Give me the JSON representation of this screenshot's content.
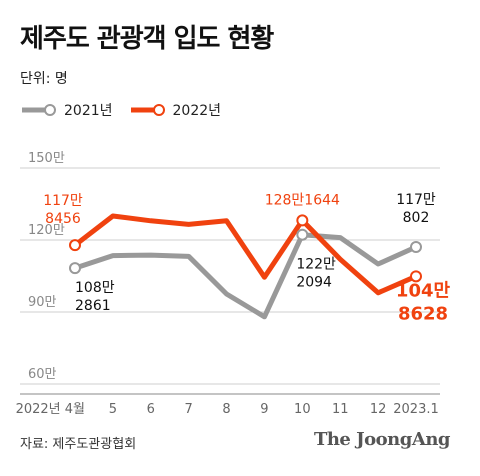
{
  "header": {
    "title": "제주도 관광객 입도 현황",
    "unit": "단위: 명"
  },
  "footer": {
    "source": "자료: 제주도관광협회",
    "brand": "The JoongAng"
  },
  "colors": {
    "series_2021": "#999999",
    "series_2022": "#f0420f",
    "grid": "#cfcfcf",
    "axis_label": "#888888"
  },
  "chart_data": {
    "type": "line",
    "categories": [
      "2022년 4월",
      "5",
      "6",
      "7",
      "8",
      "9",
      "10",
      "11",
      "12",
      "2023.1"
    ],
    "ylim": [
      60,
      150
    ],
    "yticks": [
      {
        "value": 150,
        "label": "150만"
      },
      {
        "value": 120,
        "label": "120만"
      },
      {
        "value": 90,
        "label": "90만"
      },
      {
        "value": 60,
        "label": "60만"
      }
    ],
    "grid": true,
    "legend_position": "top-left",
    "series": [
      {
        "name": "2021년",
        "values": [
          108.2861,
          113.5,
          113.7,
          113.2,
          97.5,
          88.0,
          122.2094,
          121.0,
          110.0,
          117.0802
        ]
      },
      {
        "name": "2022년",
        "values": [
          117.8456,
          130.0,
          128.0,
          126.5,
          128.0,
          104.5,
          128.1644,
          112.0,
          98.0,
          104.8628
        ]
      }
    ],
    "annotations": [
      {
        "series": "2022년",
        "index": 0,
        "lines": [
          "117만",
          "8456"
        ]
      },
      {
        "series": "2021년",
        "index": 0,
        "lines": [
          "108만",
          "2861"
        ]
      },
      {
        "series": "2022년",
        "index": 6,
        "lines": [
          "128만1644"
        ]
      },
      {
        "series": "2021년",
        "index": 6,
        "lines": [
          "122만",
          "2094"
        ]
      },
      {
        "series": "2021년",
        "index": 9,
        "lines": [
          "117만",
          "802"
        ]
      },
      {
        "series": "2022년",
        "index": 9,
        "lines": [
          "104만",
          "8628"
        ]
      }
    ]
  }
}
